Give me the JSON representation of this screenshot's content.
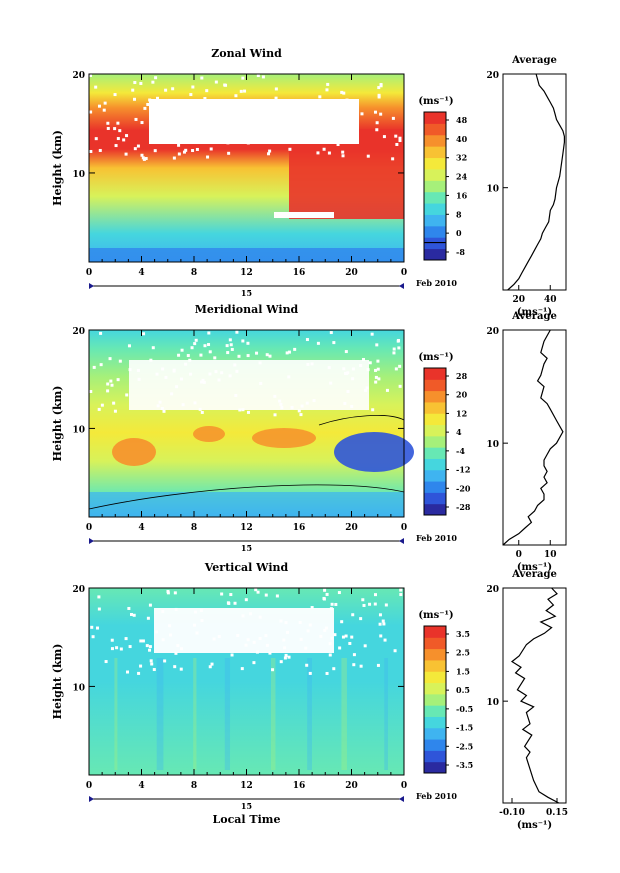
{
  "chart_data": [
    {
      "type": "heatmap",
      "title": "Zonal Wind",
      "ylabel": "Height (km)",
      "unit": "(ms⁻¹)",
      "xticks": [
        "0",
        "4",
        "8",
        "12",
        "16",
        "20",
        "0"
      ],
      "yticks": [
        "10",
        "20"
      ],
      "date_center": "15",
      "date_right": "Feb 2010",
      "colorbar_ticks": [
        "48",
        "40",
        "32",
        "24",
        "16",
        "8",
        "0",
        "-8"
      ],
      "contour_level": "0",
      "colormap": [
        "#2a2aa0",
        "#2f55d9",
        "#2f86ec",
        "#3fb4f0",
        "#45d6de",
        "#67e8b4",
        "#a6f07a",
        "#d8f25a",
        "#f4e93a",
        "#f8c233",
        "#f6902c",
        "#f05a28",
        "#e9332a"
      ],
      "average": {
        "title": "Average",
        "xlabel": "(ms⁻¹)",
        "xticks": [
          "20",
          "40"
        ],
        "yticks": [
          "10",
          "20"
        ],
        "xlim": [
          10,
          50
        ],
        "ylim": [
          1,
          20
        ],
        "profile_x": [
          13,
          17,
          20,
          22,
          24,
          26,
          28,
          30,
          32,
          34,
          35,
          37,
          39,
          40,
          42,
          43,
          44,
          46,
          47,
          48,
          49,
          49,
          48,
          46,
          44,
          43,
          42,
          40,
          38,
          36,
          33,
          31
        ],
        "profile_y": [
          1,
          1.5,
          2,
          2.5,
          3,
          3.5,
          4,
          4.5,
          5,
          5.5,
          6,
          6.5,
          7,
          8,
          8.5,
          9,
          10,
          11,
          12,
          13,
          14,
          14.5,
          15,
          15.5,
          16,
          16.5,
          17,
          17.5,
          18,
          18.5,
          19,
          20
        ]
      }
    },
    {
      "type": "heatmap",
      "title": "Meridional Wind",
      "ylabel": "Height (km)",
      "unit": "(ms⁻¹)",
      "xticks": [
        "0",
        "4",
        "8",
        "12",
        "16",
        "20",
        "0"
      ],
      "yticks": [
        "10",
        "20"
      ],
      "date_center": "15",
      "date_right": "Feb 2010",
      "colorbar_ticks": [
        "28",
        "20",
        "12",
        "4",
        "-4",
        "-12",
        "-20",
        "-28"
      ],
      "contour_level": "0",
      "colormap": [
        "#2a2aa0",
        "#2f55d9",
        "#2f86ec",
        "#3fb4f0",
        "#45d6de",
        "#67e8b4",
        "#a6f07a",
        "#d8f25a",
        "#f4e93a",
        "#f8c233",
        "#f6902c",
        "#f05a28",
        "#e9332a"
      ],
      "average": {
        "title": "Average",
        "xlabel": "(ms⁻¹)",
        "xticks": [
          "0",
          "10"
        ],
        "yticks": [
          "10",
          "20"
        ],
        "xlim": [
          -5,
          15
        ],
        "ylim": [
          1,
          20
        ],
        "profile_x": [
          -5,
          -3,
          0,
          2,
          4,
          3,
          5,
          6,
          8,
          8,
          7,
          9,
          8,
          9,
          8,
          8,
          9,
          10,
          12,
          14,
          12,
          10,
          9,
          7,
          8,
          6,
          7,
          8,
          9,
          7,
          8,
          10
        ],
        "profile_y": [
          1,
          1.5,
          2,
          2.5,
          3,
          3.5,
          4,
          4.5,
          5,
          5.5,
          6,
          6.5,
          7,
          7.5,
          8,
          8.5,
          9,
          9.5,
          10,
          11,
          12,
          13,
          13.5,
          14,
          15,
          15.5,
          16,
          17,
          17.5,
          18,
          19,
          20
        ]
      }
    },
    {
      "type": "heatmap",
      "title": "Vertical Wind",
      "xlabel": "Local Time",
      "ylabel": "Height (km)",
      "unit": "(ms⁻¹)",
      "xticks": [
        "0",
        "4",
        "8",
        "12",
        "16",
        "20",
        "0"
      ],
      "yticks": [
        "10",
        "20"
      ],
      "date_center": "15",
      "date_right": "Feb 2010",
      "colorbar_ticks": [
        "3.5",
        "2.5",
        "1.5",
        "0.5",
        "-0.5",
        "-1.5",
        "-2.5",
        "-3.5"
      ],
      "colormap": [
        "#2a2aa0",
        "#2f55d9",
        "#2f86ec",
        "#3fb4f0",
        "#45d6de",
        "#67e8b4",
        "#a6f07a",
        "#d8f25a",
        "#f4e93a",
        "#f8c233",
        "#f6902c",
        "#f05a28",
        "#e9332a"
      ],
      "average": {
        "title": "Average",
        "xlabel": "(ms⁻¹)",
        "xticks": [
          "-0.10",
          "0.15"
        ],
        "yticks": [
          "10",
          "20"
        ],
        "xlim": [
          -0.15,
          0.2
        ],
        "ylim": [
          1,
          20
        ],
        "profile_x": [
          0.16,
          0.1,
          0.05,
          0.02,
          0.0,
          -0.02,
          0.0,
          -0.03,
          0.01,
          -0.04,
          0.0,
          -0.02,
          0.02,
          -0.05,
          -0.02,
          -0.07,
          -0.03,
          -0.08,
          -0.05,
          -0.1,
          -0.06,
          -0.02,
          0.02,
          0.08,
          0.12,
          0.06,
          0.14,
          0.09,
          0.13,
          0.1,
          0.15,
          0.12
        ],
        "profile_y": [
          1,
          1.5,
          2,
          3,
          4,
          5,
          5.5,
          6,
          7,
          7.5,
          8,
          9,
          9.5,
          10,
          10.5,
          11,
          12,
          12.5,
          13,
          13.5,
          14,
          15,
          15.5,
          16,
          16.5,
          17,
          17.5,
          18,
          18.5,
          19,
          19.5,
          20
        ]
      }
    }
  ]
}
